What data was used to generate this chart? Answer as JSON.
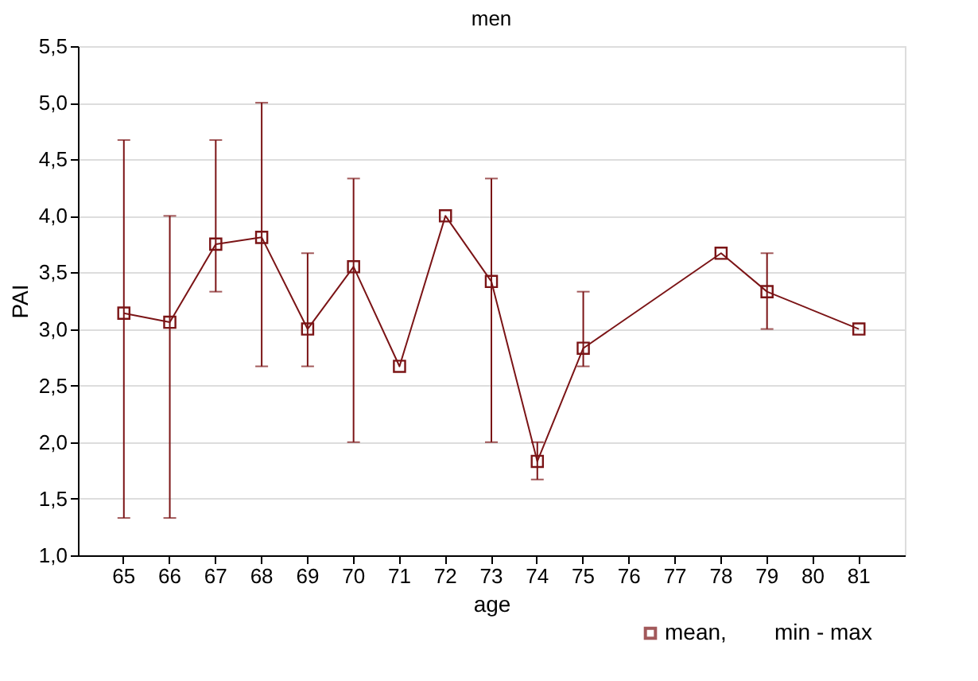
{
  "chart_data": {
    "type": "line",
    "title": "men",
    "xlabel": "age",
    "ylabel": "PAI",
    "categories": [
      "65",
      "66",
      "67",
      "68",
      "69",
      "70",
      "71",
      "72",
      "73",
      "74",
      "75",
      "76",
      "77",
      "78",
      "79",
      "80",
      "81"
    ],
    "series": [
      {
        "name": "mean,",
        "color": "#7b1416",
        "values": [
          3.14,
          3.06,
          3.75,
          3.81,
          3.0,
          3.55,
          2.67,
          4.0,
          3.42,
          1.83,
          2.83,
          null,
          null,
          3.67,
          3.33,
          null,
          3.0
        ],
        "errors": [
          [
            1.33,
            4.67
          ],
          [
            1.33,
            4.0
          ],
          [
            3.33,
            4.67
          ],
          [
            2.67,
            5.0
          ],
          [
            2.67,
            3.67
          ],
          [
            2.0,
            4.33
          ],
          null,
          null,
          [
            2.0,
            4.33
          ],
          [
            1.67,
            2.0
          ],
          [
            2.67,
            3.33
          ],
          null,
          null,
          null,
          [
            3.0,
            3.67
          ],
          null,
          null
        ]
      }
    ],
    "annotations": [
      "min - max"
    ],
    "ylim": [
      1.0,
      5.5
    ],
    "yticks": [
      {
        "value": 1.0,
        "label": "1,0"
      },
      {
        "value": 1.5,
        "label": "1,5"
      },
      {
        "value": 2.0,
        "label": "2,0"
      },
      {
        "value": 2.5,
        "label": "2,5"
      },
      {
        "value": 3.0,
        "label": "3,0"
      },
      {
        "value": 3.5,
        "label": "3,5"
      },
      {
        "value": 4.0,
        "label": "4,0"
      },
      {
        "value": 4.5,
        "label": "4,5"
      },
      {
        "value": 5.0,
        "label": "5,0"
      },
      {
        "value": 5.5,
        "label": "5,5"
      }
    ],
    "grid": "y",
    "legend": "bottom right",
    "marker": "square",
    "line_style": "solid"
  }
}
